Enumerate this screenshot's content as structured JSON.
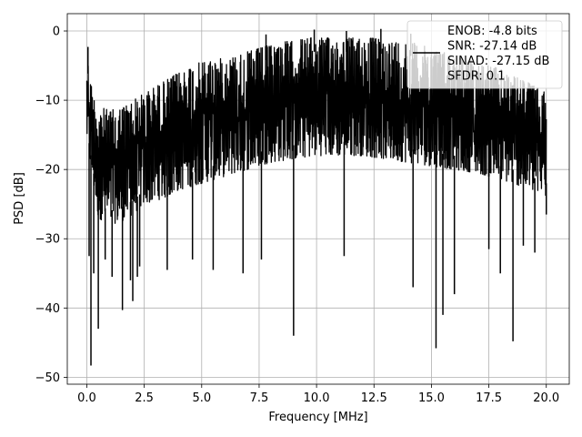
{
  "chart_data": {
    "type": "line",
    "title": "",
    "xlabel": "Frequency [MHz]",
    "ylabel": "PSD [dB]",
    "xlim": [
      -0.85,
      21.0
    ],
    "ylim": [
      -51.0,
      2.5
    ],
    "xticks": [
      0.0,
      2.5,
      5.0,
      7.5,
      10.0,
      12.5,
      15.0,
      17.5,
      20.0
    ],
    "xtick_labels": [
      "0.0",
      "2.5",
      "5.0",
      "7.5",
      "10.0",
      "12.5",
      "15.0",
      "17.5",
      "20.0"
    ],
    "yticks": [
      0,
      -10,
      -20,
      -30,
      -40,
      -50
    ],
    "ytick_labels": [
      "0",
      "−10",
      "−20",
      "−30",
      "−40",
      "−50"
    ],
    "grid": true,
    "legend_position": "top-right",
    "line_color": "#000000",
    "series": [
      {
        "name": "ENOB: -4.8 bits\nSNR: -27.14 dB\nSINAD: -27.15 dB\nSFDR: 0.1",
        "x_range": [
          0.0,
          20.0
        ],
        "upper_envelope": [
          [
            0.0,
            -2.3
          ],
          [
            0.1,
            -6.0
          ],
          [
            0.3,
            -9.5
          ],
          [
            0.6,
            -11.0
          ],
          [
            1.0,
            -11.5
          ],
          [
            1.5,
            -11.0
          ],
          [
            2.0,
            -10.0
          ],
          [
            2.5,
            -9.0
          ],
          [
            3.0,
            -8.0
          ],
          [
            3.5,
            -7.0
          ],
          [
            4.0,
            -6.0
          ],
          [
            4.5,
            -5.0
          ],
          [
            5.0,
            -4.5
          ],
          [
            5.5,
            -4.0
          ],
          [
            6.0,
            -4.0
          ],
          [
            6.5,
            -3.5
          ],
          [
            7.0,
            -3.0
          ],
          [
            7.5,
            -2.5
          ],
          [
            8.0,
            -2.0
          ],
          [
            8.5,
            -1.5
          ],
          [
            9.0,
            -1.5
          ],
          [
            9.5,
            -1.0
          ],
          [
            10.0,
            -1.0
          ],
          [
            10.5,
            -1.0
          ],
          [
            11.0,
            -1.0
          ],
          [
            11.5,
            -1.0
          ],
          [
            12.0,
            -1.0
          ],
          [
            12.5,
            -1.0
          ],
          [
            13.0,
            -1.5
          ],
          [
            13.5,
            -1.5
          ],
          [
            14.0,
            -1.5
          ],
          [
            14.5,
            -2.0
          ],
          [
            15.0,
            -2.5
          ],
          [
            15.5,
            -3.0
          ],
          [
            16.0,
            -3.5
          ],
          [
            16.5,
            -4.0
          ],
          [
            17.0,
            -4.5
          ],
          [
            17.5,
            -5.0
          ],
          [
            18.0,
            -5.5
          ],
          [
            18.5,
            -6.5
          ],
          [
            19.0,
            -7.0
          ],
          [
            19.5,
            -8.0
          ],
          [
            20.0,
            -9.0
          ]
        ],
        "lower_envelope": [
          [
            0.0,
            -16.0
          ],
          [
            0.5,
            -27.0
          ],
          [
            1.0,
            -28.0
          ],
          [
            1.5,
            -27.5
          ],
          [
            2.0,
            -26.5
          ],
          [
            2.5,
            -25.0
          ],
          [
            3.0,
            -24.5
          ],
          [
            3.5,
            -24.0
          ],
          [
            4.0,
            -23.0
          ],
          [
            4.5,
            -22.5
          ],
          [
            5.0,
            -22.0
          ],
          [
            5.5,
            -21.5
          ],
          [
            6.0,
            -21.0
          ],
          [
            6.5,
            -20.5
          ],
          [
            7.0,
            -20.0
          ],
          [
            7.5,
            -19.5
          ],
          [
            8.0,
            -19.0
          ],
          [
            9.0,
            -18.5
          ],
          [
            10.0,
            -18.0
          ],
          [
            11.0,
            -18.0
          ],
          [
            12.0,
            -18.0
          ],
          [
            13.0,
            -18.5
          ],
          [
            14.0,
            -19.0
          ],
          [
            15.0,
            -19.5
          ],
          [
            16.0,
            -20.0
          ],
          [
            17.0,
            -20.5
          ],
          [
            17.5,
            -21.0
          ],
          [
            18.0,
            -21.5
          ],
          [
            19.0,
            -22.5
          ],
          [
            20.0,
            -24.0
          ]
        ],
        "notable_dips": [
          [
            0.1,
            -32.5
          ],
          [
            0.18,
            -48.3
          ],
          [
            0.3,
            -35.0
          ],
          [
            0.5,
            -43.0
          ],
          [
            0.8,
            -33.0
          ],
          [
            1.1,
            -35.5
          ],
          [
            1.55,
            -40.3
          ],
          [
            1.9,
            -36.0
          ],
          [
            2.0,
            -39.0
          ],
          [
            2.2,
            -35.5
          ],
          [
            2.3,
            -34.0
          ],
          [
            3.5,
            -34.5
          ],
          [
            4.6,
            -33.0
          ],
          [
            5.5,
            -34.5
          ],
          [
            6.8,
            -35.0
          ],
          [
            7.6,
            -33.0
          ],
          [
            9.0,
            -44.0
          ],
          [
            11.2,
            -32.5
          ],
          [
            14.2,
            -37.0
          ],
          [
            15.2,
            -45.8
          ],
          [
            15.5,
            -41.0
          ],
          [
            16.0,
            -38.0
          ],
          [
            17.5,
            -31.5
          ],
          [
            18.0,
            -35.0
          ],
          [
            18.55,
            -44.8
          ],
          [
            19.0,
            -31.0
          ],
          [
            19.5,
            -32.0
          ],
          [
            20.0,
            -26.5
          ]
        ],
        "notable_peaks": [
          [
            0.05,
            -2.3
          ],
          [
            7.8,
            -0.5
          ],
          [
            9.9,
            0.2
          ],
          [
            11.3,
            0.0
          ],
          [
            12.8,
            0.3
          ],
          [
            14.1,
            -0.4
          ]
        ]
      }
    ]
  }
}
